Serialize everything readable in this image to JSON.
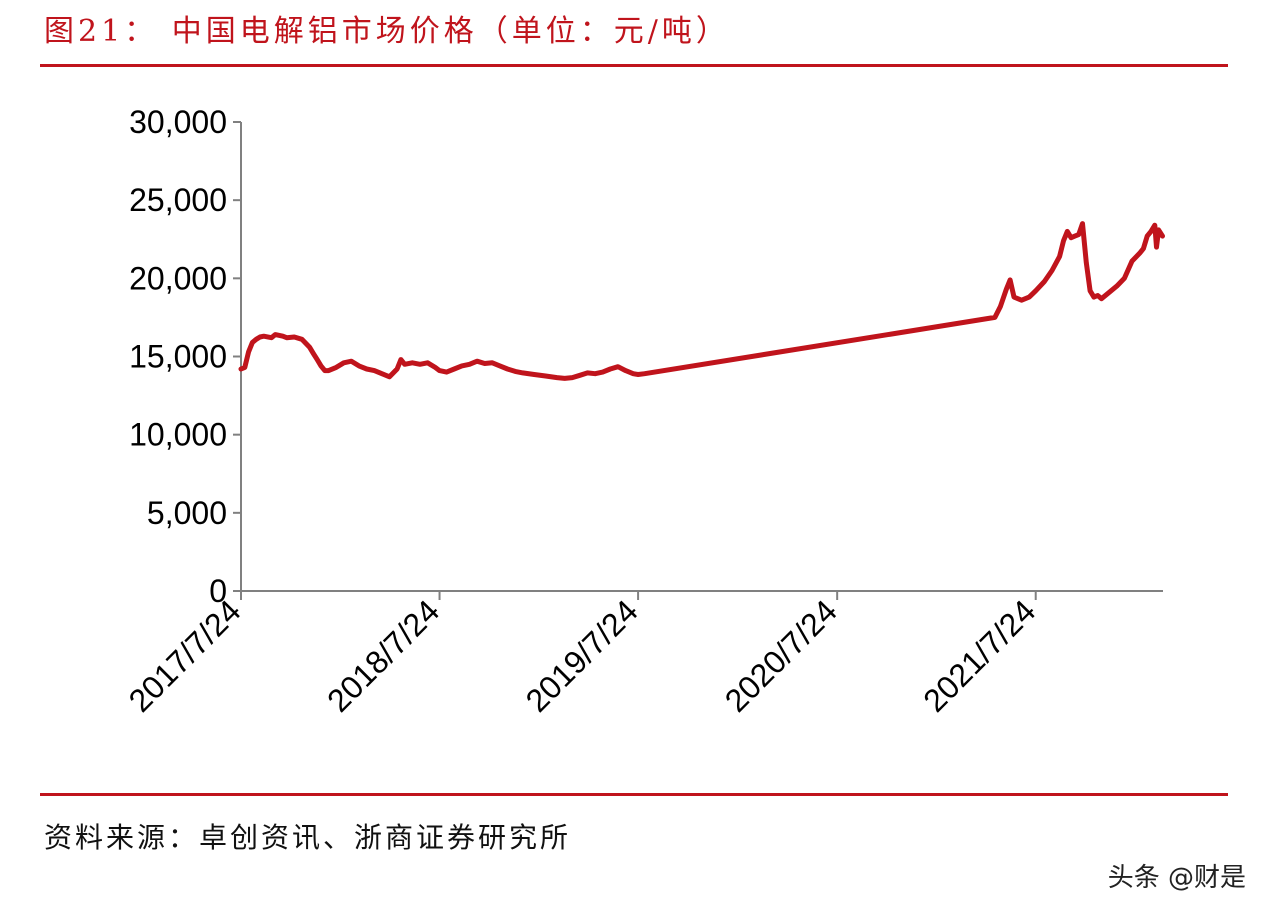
{
  "header": {
    "figure_title": "图21： 中国电解铝市场价格（单位：元/吨）"
  },
  "footer": {
    "source": "资料来源：卓创资讯、浙商证券研究所",
    "watermark": "头条 @财是"
  },
  "colors": {
    "accent": "#c0141c",
    "series_line": "#c0141c",
    "axis": "#808080",
    "text": "#000000"
  },
  "chart_data": {
    "type": "line",
    "title": "",
    "xlabel": "",
    "ylabel": "",
    "ylim": [
      0,
      30000
    ],
    "yticks": [
      0,
      5000,
      10000,
      15000,
      20000,
      25000,
      30000
    ],
    "ytick_labels": [
      "0",
      "5,000",
      "10,000",
      "15,000",
      "20,000",
      "25,000",
      "30,000"
    ],
    "xlim": [
      "2017-07-24",
      "2022-03-15"
    ],
    "xtick_labels": [
      "2017/7/24",
      "2018/7/24",
      "2019/7/24",
      "2020/7/24",
      "2021/7/24"
    ],
    "xtick_dates": [
      "2017-07-24",
      "2018-07-24",
      "2019-07-24",
      "2020-07-24",
      "2021-07-24"
    ],
    "grid": false,
    "legend": "none",
    "series": [
      {
        "points": [
          [
            "2017-07-24",
            14200
          ],
          [
            "2017-07-31",
            14300
          ],
          [
            "2017-08-07",
            15300
          ],
          [
            "2017-08-14",
            15900
          ],
          [
            "2017-08-21",
            16100
          ],
          [
            "2017-08-28",
            16250
          ],
          [
            "2017-09-04",
            16300
          ],
          [
            "2017-09-18",
            16200
          ],
          [
            "2017-09-25",
            16400
          ],
          [
            "2017-10-09",
            16300
          ],
          [
            "2017-10-16",
            16200
          ],
          [
            "2017-10-30",
            16250
          ],
          [
            "2017-11-13",
            16100
          ],
          [
            "2017-11-27",
            15600
          ],
          [
            "2017-12-04",
            15200
          ],
          [
            "2017-12-11",
            14800
          ],
          [
            "2017-12-18",
            14400
          ],
          [
            "2017-12-25",
            14100
          ],
          [
            "2018-01-01",
            14100
          ],
          [
            "2018-01-15",
            14300
          ],
          [
            "2018-01-29",
            14600
          ],
          [
            "2018-02-12",
            14700
          ],
          [
            "2018-02-26",
            14400
          ],
          [
            "2018-03-12",
            14200
          ],
          [
            "2018-03-26",
            14100
          ],
          [
            "2018-04-09",
            13900
          ],
          [
            "2018-04-23",
            13700
          ],
          [
            "2018-05-07",
            14200
          ],
          [
            "2018-05-14",
            14800
          ],
          [
            "2018-05-21",
            14500
          ],
          [
            "2018-06-04",
            14600
          ],
          [
            "2018-06-18",
            14500
          ],
          [
            "2018-07-02",
            14600
          ],
          [
            "2018-07-16",
            14300
          ],
          [
            "2018-07-24",
            14100
          ],
          [
            "2018-08-06",
            14000
          ],
          [
            "2018-08-20",
            14200
          ],
          [
            "2018-09-03",
            14400
          ],
          [
            "2018-09-17",
            14500
          ],
          [
            "2018-10-01",
            14700
          ],
          [
            "2018-10-15",
            14550
          ],
          [
            "2018-10-29",
            14600
          ],
          [
            "2018-11-12",
            14400
          ],
          [
            "2018-11-26",
            14200
          ],
          [
            "2018-12-10",
            14050
          ],
          [
            "2018-12-24",
            13950
          ],
          [
            "2019-01-14",
            13850
          ],
          [
            "2019-02-04",
            13750
          ],
          [
            "2019-02-25",
            13650
          ],
          [
            "2019-03-11",
            13600
          ],
          [
            "2019-03-25",
            13650
          ],
          [
            "2019-04-08",
            13800
          ],
          [
            "2019-04-22",
            13950
          ],
          [
            "2019-05-06",
            13900
          ],
          [
            "2019-05-20",
            14000
          ],
          [
            "2019-06-03",
            14200
          ],
          [
            "2019-06-17",
            14350
          ],
          [
            "2019-07-01",
            14100
          ],
          [
            "2019-07-15",
            13900
          ],
          [
            "2019-07-24",
            13850
          ],
          [
            "2019-08-05",
            13900
          ],
          [
            "2021-05-10",
            17500
          ],
          [
            "2021-05-20",
            18200
          ],
          [
            "2021-05-31",
            19300
          ],
          [
            "2021-06-07",
            19900
          ],
          [
            "2021-06-14",
            18800
          ],
          [
            "2021-06-28",
            18600
          ],
          [
            "2021-07-12",
            18800
          ],
          [
            "2021-07-24",
            19200
          ],
          [
            "2021-08-09",
            19800
          ],
          [
            "2021-08-23",
            20500
          ],
          [
            "2021-09-06",
            21400
          ],
          [
            "2021-09-13",
            22400
          ],
          [
            "2021-09-20",
            23000
          ],
          [
            "2021-09-27",
            22600
          ],
          [
            "2021-10-04",
            22700
          ],
          [
            "2021-10-11",
            22800
          ],
          [
            "2021-10-18",
            23500
          ],
          [
            "2021-10-25",
            21000
          ],
          [
            "2021-11-01",
            19200
          ],
          [
            "2021-11-08",
            18800
          ],
          [
            "2021-11-15",
            18900
          ],
          [
            "2021-11-22",
            18700
          ],
          [
            "2021-12-06",
            19100
          ],
          [
            "2021-12-20",
            19500
          ],
          [
            "2022-01-03",
            20000
          ],
          [
            "2022-01-17",
            21100
          ],
          [
            "2022-01-31",
            21600
          ],
          [
            "2022-02-07",
            21900
          ],
          [
            "2022-02-14",
            22700
          ],
          [
            "2022-02-21",
            23000
          ],
          [
            "2022-02-28",
            23400
          ],
          [
            "2022-03-03",
            22000
          ],
          [
            "2022-03-07",
            23100
          ],
          [
            "2022-03-14",
            22700
          ]
        ]
      }
    ]
  }
}
